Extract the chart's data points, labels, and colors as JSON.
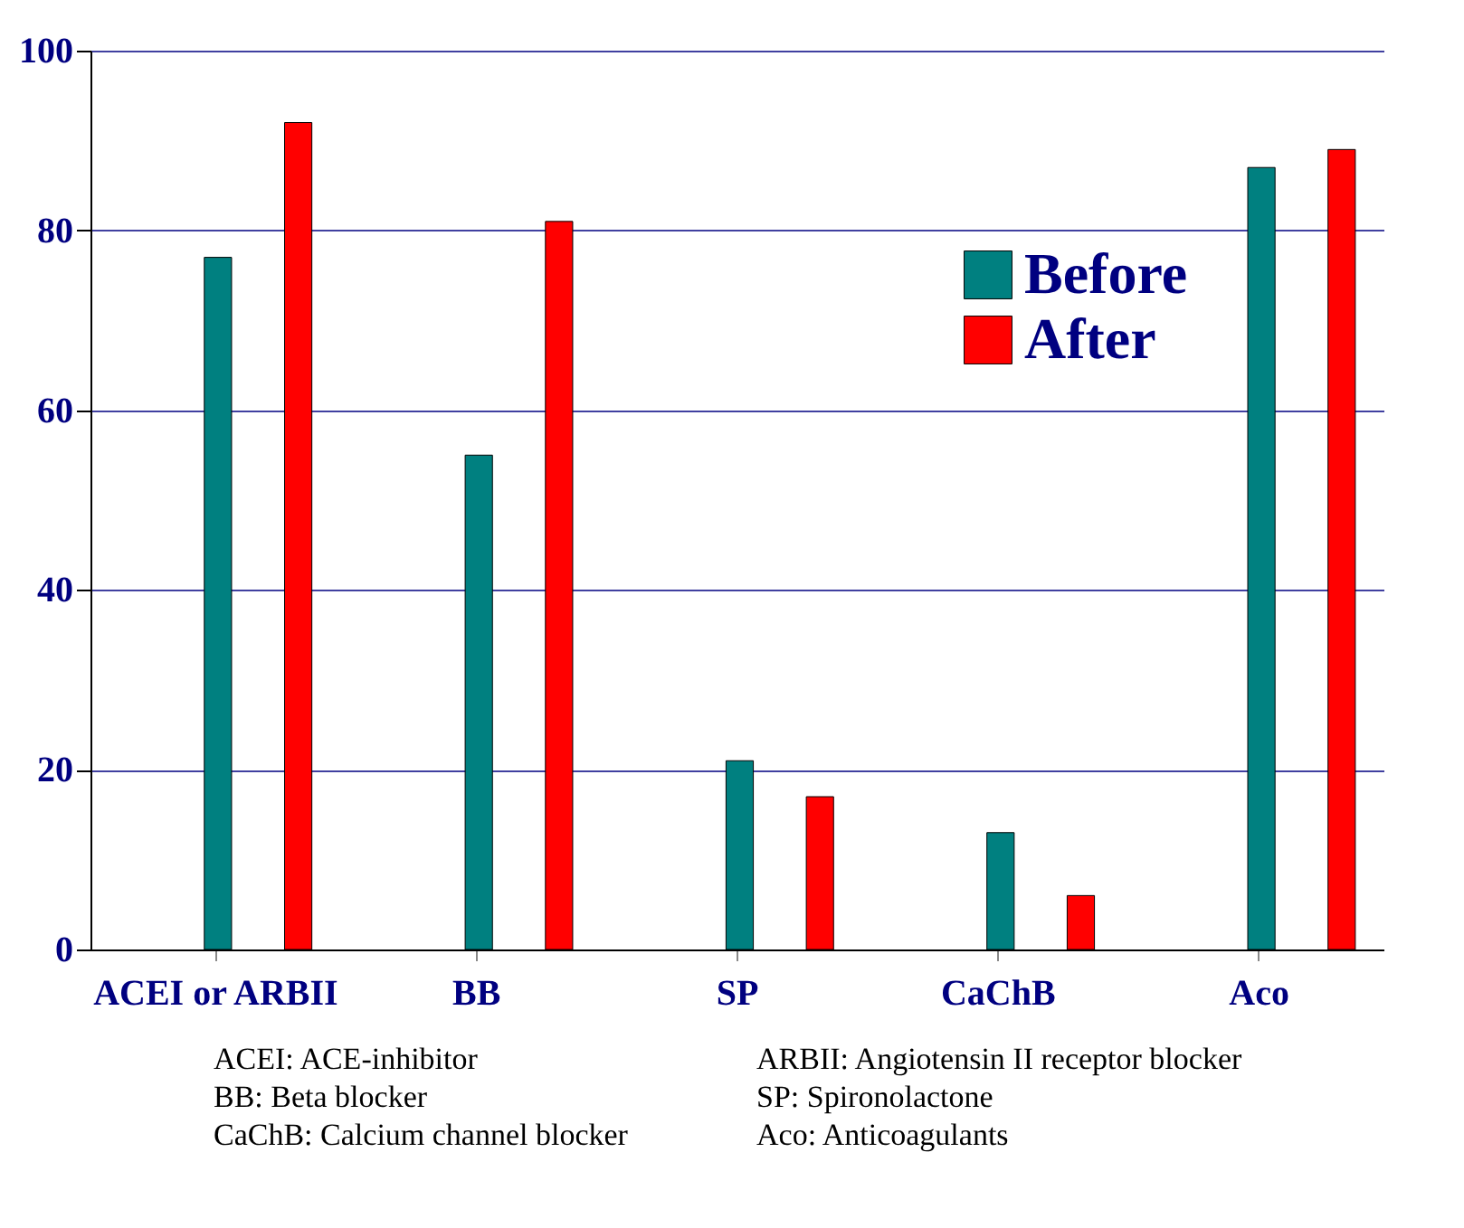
{
  "chart_data": {
    "type": "bar",
    "categories": [
      "ACEI or ARBII",
      "BB",
      "SP",
      "CaChB",
      "Aco"
    ],
    "series": [
      {
        "name": "Before",
        "color": "#008080",
        "values": [
          77,
          55,
          21,
          13,
          87
        ]
      },
      {
        "name": "After",
        "color": "#ff0000",
        "values": [
          92,
          81,
          17,
          6,
          89
        ]
      }
    ],
    "ylim": [
      0,
      100
    ],
    "yticks": [
      0,
      20,
      40,
      60,
      80,
      100
    ],
    "grid": "y",
    "legend": "top right",
    "annotations": [
      "ACEI: ACE-inhibitor",
      "ARBII: Angiotensin II receptor blocker",
      "BB: Beta blocker",
      "SP: Spironolactone",
      "CaChB: Calcium channel blocker",
      "Aco: Anticoagulants"
    ]
  }
}
